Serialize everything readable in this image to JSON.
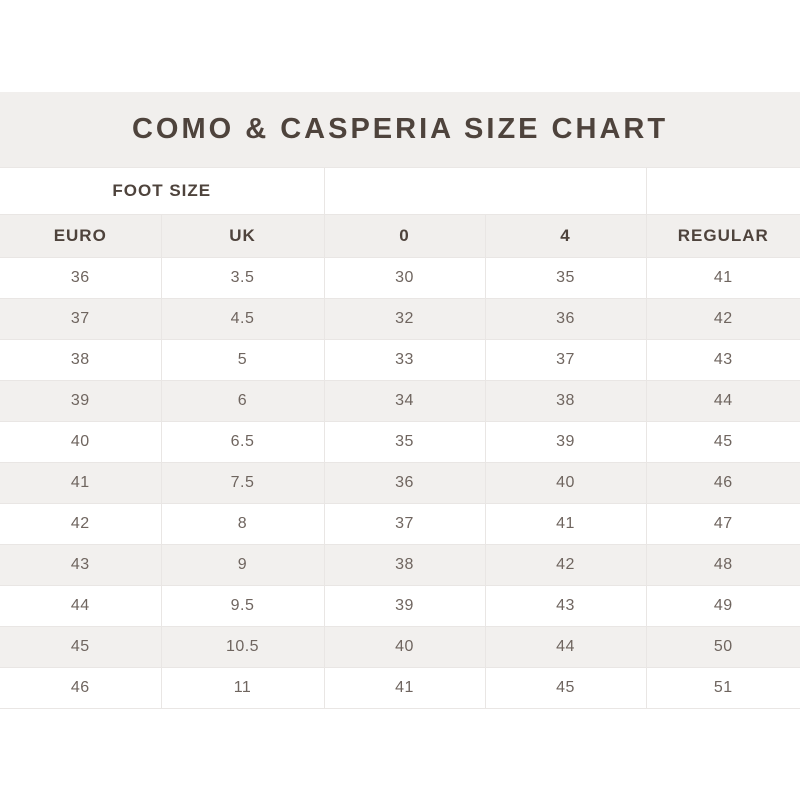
{
  "chart_data": {
    "type": "table",
    "title": "COMO & CASPERIA SIZE CHART",
    "group_header": "FOOT SIZE",
    "columns": [
      "EURO",
      "UK",
      "0",
      "4",
      "REGULAR"
    ],
    "rows": [
      [
        "36",
        "3.5",
        "30",
        "35",
        "41"
      ],
      [
        "37",
        "4.5",
        "32",
        "36",
        "42"
      ],
      [
        "38",
        "5",
        "33",
        "37",
        "43"
      ],
      [
        "39",
        "6",
        "34",
        "38",
        "44"
      ],
      [
        "40",
        "6.5",
        "35",
        "39",
        "45"
      ],
      [
        "41",
        "7.5",
        "36",
        "40",
        "46"
      ],
      [
        "42",
        "8",
        "37",
        "41",
        "47"
      ],
      [
        "43",
        "9",
        "38",
        "42",
        "48"
      ],
      [
        "44",
        "9.5",
        "39",
        "43",
        "49"
      ],
      [
        "45",
        "10.5",
        "40",
        "44",
        "50"
      ],
      [
        "46",
        "11",
        "41",
        "45",
        "51"
      ]
    ],
    "layout_hints": {
      "zebra_striping": true,
      "group_header_spans_columns": [
        "EURO",
        "UK"
      ],
      "all_cells_centered": true
    }
  },
  "colors": {
    "page_background": "#ffffff",
    "band_background": "#f1efed",
    "zebra_row_background": "#f2f0ee",
    "title_text": "#4e433c",
    "header_text": "#4e433c",
    "data_text": "#6f655f",
    "border": "#e9e6e4"
  }
}
